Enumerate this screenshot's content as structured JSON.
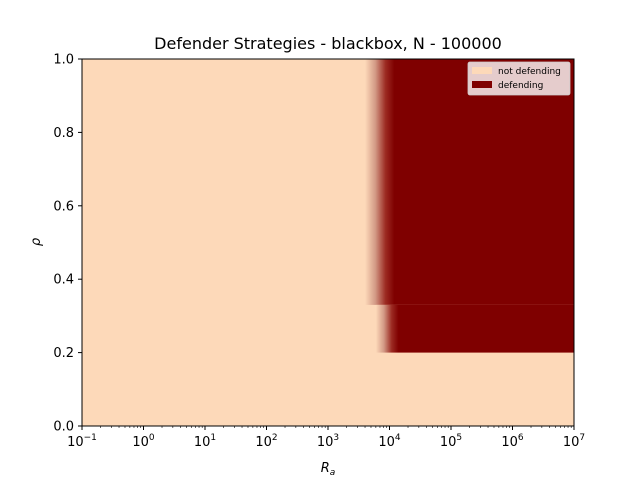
{
  "chart_data": {
    "type": "heatmap",
    "title": "Defender Strategies - blackbox, N - 100000",
    "xlabel": "R_a",
    "ylabel": "ρ",
    "xscale": "log",
    "xlim": [
      0.1,
      10000000
    ],
    "ylim": [
      0.0,
      1.0
    ],
    "x_ticks": [
      {
        "value": 0.1,
        "base": "10",
        "exp": "−1"
      },
      {
        "value": 1,
        "base": "10",
        "exp": "0"
      },
      {
        "value": 10,
        "base": "10",
        "exp": "1"
      },
      {
        "value": 100,
        "base": "10",
        "exp": "2"
      },
      {
        "value": 1000,
        "base": "10",
        "exp": "3"
      },
      {
        "value": 10000,
        "base": "10",
        "exp": "4"
      },
      {
        "value": 100000,
        "base": "10",
        "exp": "5"
      },
      {
        "value": 1000000,
        "base": "10",
        "exp": "6"
      },
      {
        "value": 10000000,
        "base": "10",
        "exp": "7"
      }
    ],
    "y_ticks": [
      "0.0",
      "0.2",
      "0.4",
      "0.6",
      "0.8",
      "1.0"
    ],
    "grid": false,
    "legend_position": "top-right",
    "categories": [
      "not defending",
      "defending"
    ],
    "colors": {
      "not defending": "#fdd9b9",
      "defending": "#7f0000"
    },
    "regions": [
      {
        "category": "defending",
        "rho_min": 0.33,
        "rho_max": 1.0,
        "transition_ra_start": 4000,
        "transition_ra_end": 12000,
        "ra_max": 10000000
      },
      {
        "category": "defending",
        "rho_min": 0.2,
        "rho_max": 0.33,
        "transition_ra_start": 6000,
        "transition_ra_end": 14000,
        "ra_max": 10000000
      },
      {
        "category": "not defending",
        "rho_min": 0.0,
        "rho_max": 0.2,
        "ra_min": 0.1,
        "ra_max": 10000000
      }
    ]
  }
}
